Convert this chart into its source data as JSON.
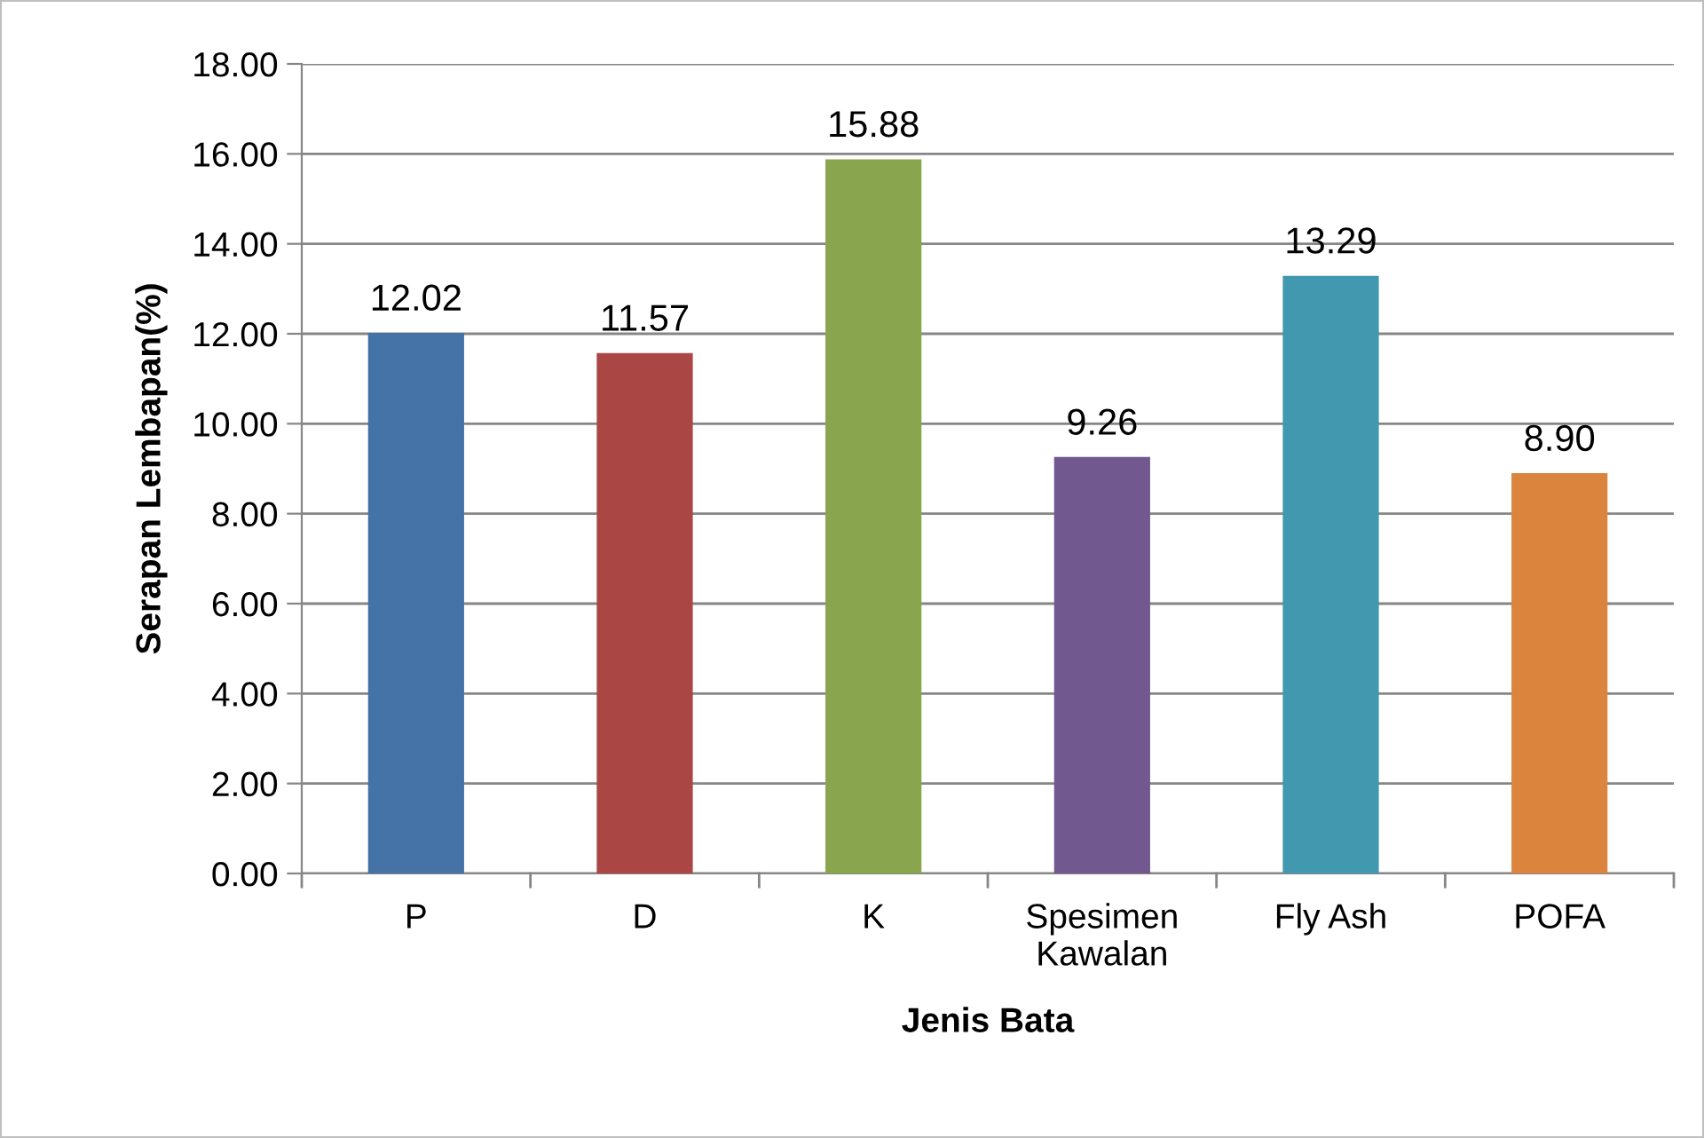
{
  "chart_data": {
    "type": "bar",
    "xlabel": "Jenis Bata",
    "ylabel": "Serapan Lembapan(%)",
    "categories": [
      "P",
      "D",
      "K",
      "Spesimen Kawalan",
      "Fly Ash",
      "POFA"
    ],
    "values": [
      12.02,
      11.57,
      15.88,
      9.26,
      13.29,
      8.9
    ],
    "value_labels": [
      "12.02",
      "11.57",
      "15.88",
      "9.26",
      "13.29",
      "8.90"
    ],
    "colors": [
      "#4572a7",
      "#aa4643",
      "#89a54e",
      "#71588f",
      "#4198af",
      "#db843d"
    ],
    "ylim": [
      0,
      18
    ],
    "yticks": [
      {
        "value": 0,
        "label": "0.00"
      },
      {
        "value": 2,
        "label": "2.00"
      },
      {
        "value": 4,
        "label": "4.00"
      },
      {
        "value": 6,
        "label": "6.00"
      },
      {
        "value": 8,
        "label": "8.00"
      },
      {
        "value": 10,
        "label": "10.00"
      },
      {
        "value": 12,
        "label": "12.00"
      },
      {
        "value": 14,
        "label": "14.00"
      },
      {
        "value": 16,
        "label": "16.00"
      },
      {
        "value": 18,
        "label": "18.00"
      }
    ],
    "grid": "y"
  }
}
